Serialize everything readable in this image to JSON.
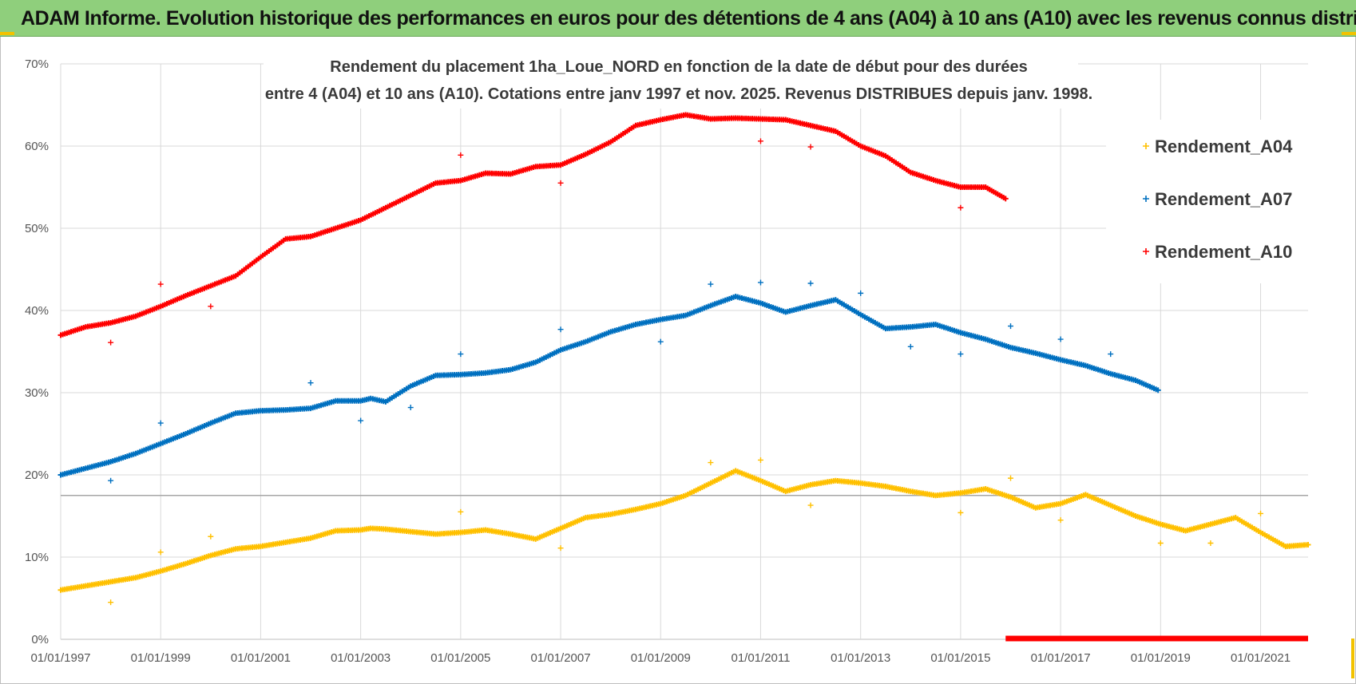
{
  "banner": {
    "title": "ADAM Informe. Evolution historique des performances en euros pour des détentions de 4 ans (A04) à 10 ans (A10) avec les revenus connus distribués"
  },
  "colors": {
    "banner_bg": "#8fcf7c",
    "accent_corner": "#f2c200",
    "A04": "#ffc000",
    "A07": "#0070c0",
    "A10": "#ff0000",
    "grid": "#d9d9d9"
  },
  "chart_data": {
    "type": "scatter",
    "title_lines": [
      "Rendement du placement 1ha_Loue_NORD en fonction de la date de début pour des durées",
      "entre 4 (A04) et 10 ans (A10).  Cotations entre janv 1997 et nov. 2025. Revenus DISTRIBUES depuis janv. 1998."
    ],
    "xlabel": "",
    "ylabel": "",
    "x_range": [
      1997.0,
      2021.95
    ],
    "ylim": [
      0,
      70
    ],
    "y_ticks": [
      0,
      10,
      20,
      30,
      40,
      50,
      60,
      70
    ],
    "y_tick_labels": [
      "0%",
      "10%",
      "20%",
      "30%",
      "40%",
      "50%",
      "60%",
      "70%"
    ],
    "x_ticks": [
      1997,
      1999,
      2001,
      2003,
      2005,
      2007,
      2009,
      2011,
      2013,
      2015,
      2017,
      2019,
      2021
    ],
    "x_tick_labels": [
      "01/01/1997",
      "01/01/1999",
      "01/01/2001",
      "01/01/2003",
      "01/01/2005",
      "01/01/2007",
      "01/01/2009",
      "01/01/2011",
      "01/01/2013",
      "01/01/2015",
      "01/01/2017",
      "01/01/2019",
      "01/01/2021"
    ],
    "reference_line_y": 17.5,
    "grid": true,
    "legend_position": "right",
    "series": [
      {
        "name": "Rendement_A04",
        "points": [
          [
            1997.0,
            6.0
          ],
          [
            1997.5,
            6.5
          ],
          [
            1998.0,
            7.0
          ],
          [
            1998.5,
            7.5
          ],
          [
            1999.0,
            8.3
          ],
          [
            1999.5,
            9.2
          ],
          [
            2000.0,
            10.2
          ],
          [
            2000.5,
            11.0
          ],
          [
            2001.0,
            11.3
          ],
          [
            2001.5,
            11.8
          ],
          [
            2002.0,
            12.3
          ],
          [
            2002.5,
            13.2
          ],
          [
            2003.0,
            13.3
          ],
          [
            2003.2,
            13.5
          ],
          [
            2003.5,
            13.4
          ],
          [
            2004.0,
            13.1
          ],
          [
            2004.5,
            12.8
          ],
          [
            2005.0,
            13.0
          ],
          [
            2005.5,
            13.3
          ],
          [
            2006.0,
            12.8
          ],
          [
            2006.5,
            12.2
          ],
          [
            2007.0,
            13.5
          ],
          [
            2007.5,
            14.8
          ],
          [
            2008.0,
            15.2
          ],
          [
            2008.5,
            15.8
          ],
          [
            2009.0,
            16.5
          ],
          [
            2009.5,
            17.5
          ],
          [
            2010.0,
            19.0
          ],
          [
            2010.5,
            20.5
          ],
          [
            2011.0,
            19.3
          ],
          [
            2011.5,
            18.0
          ],
          [
            2012.0,
            18.8
          ],
          [
            2012.5,
            19.3
          ],
          [
            2013.0,
            19.0
          ],
          [
            2013.5,
            18.6
          ],
          [
            2014.0,
            18.0
          ],
          [
            2014.5,
            17.5
          ],
          [
            2015.0,
            17.8
          ],
          [
            2015.5,
            18.3
          ],
          [
            2016.0,
            17.3
          ],
          [
            2016.5,
            16.0
          ],
          [
            2017.0,
            16.5
          ],
          [
            2017.5,
            17.6
          ],
          [
            2018.0,
            16.3
          ],
          [
            2018.5,
            15.0
          ],
          [
            2019.0,
            14.0
          ],
          [
            2019.5,
            13.2
          ],
          [
            2020.0,
            14.0
          ],
          [
            2020.5,
            14.8
          ],
          [
            2021.0,
            13.0
          ],
          [
            2021.5,
            11.3
          ],
          [
            2021.95,
            11.5
          ]
        ],
        "outliers": [
          [
            1998.0,
            4.5
          ],
          [
            1999.0,
            10.6
          ],
          [
            2000.0,
            12.5
          ],
          [
            2005.0,
            15.5
          ],
          [
            2007.0,
            11.1
          ],
          [
            2010.0,
            21.5
          ],
          [
            2011.0,
            21.8
          ],
          [
            2012.0,
            16.3
          ],
          [
            2015.0,
            15.4
          ],
          [
            2016.0,
            19.6
          ],
          [
            2017.0,
            14.5
          ],
          [
            2019.0,
            11.7
          ],
          [
            2020.0,
            11.7
          ],
          [
            2021.0,
            15.3
          ]
        ]
      },
      {
        "name": "Rendement_A07",
        "points": [
          [
            1997.0,
            20.0
          ],
          [
            1997.5,
            20.8
          ],
          [
            1998.0,
            21.6
          ],
          [
            1998.5,
            22.6
          ],
          [
            1999.0,
            23.8
          ],
          [
            1999.5,
            25.0
          ],
          [
            2000.0,
            26.3
          ],
          [
            2000.5,
            27.5
          ],
          [
            2001.0,
            27.8
          ],
          [
            2001.5,
            27.9
          ],
          [
            2002.0,
            28.1
          ],
          [
            2002.5,
            29.0
          ],
          [
            2003.0,
            29.0
          ],
          [
            2003.2,
            29.3
          ],
          [
            2003.5,
            28.9
          ],
          [
            2004.0,
            30.8
          ],
          [
            2004.5,
            32.1
          ],
          [
            2005.0,
            32.2
          ],
          [
            2005.5,
            32.4
          ],
          [
            2006.0,
            32.8
          ],
          [
            2006.5,
            33.7
          ],
          [
            2007.0,
            35.2
          ],
          [
            2007.5,
            36.2
          ],
          [
            2008.0,
            37.4
          ],
          [
            2008.5,
            38.3
          ],
          [
            2009.0,
            38.9
          ],
          [
            2009.5,
            39.4
          ],
          [
            2010.0,
            40.6
          ],
          [
            2010.5,
            41.7
          ],
          [
            2011.0,
            40.9
          ],
          [
            2011.5,
            39.8
          ],
          [
            2012.0,
            40.6
          ],
          [
            2012.5,
            41.3
          ],
          [
            2013.0,
            39.5
          ],
          [
            2013.5,
            37.8
          ],
          [
            2014.0,
            38.0
          ],
          [
            2014.5,
            38.3
          ],
          [
            2015.0,
            37.3
          ],
          [
            2015.5,
            36.5
          ],
          [
            2016.0,
            35.5
          ],
          [
            2016.5,
            34.8
          ],
          [
            2017.0,
            34.0
          ],
          [
            2017.5,
            33.3
          ],
          [
            2018.0,
            32.3
          ],
          [
            2018.5,
            31.5
          ],
          [
            2018.95,
            30.3
          ]
        ],
        "outliers": [
          [
            1998.0,
            19.3
          ],
          [
            1999.0,
            26.3
          ],
          [
            2002.0,
            31.2
          ],
          [
            2003.0,
            26.6
          ],
          [
            2004.0,
            28.2
          ],
          [
            2005.0,
            34.7
          ],
          [
            2007.0,
            37.7
          ],
          [
            2009.0,
            36.2
          ],
          [
            2010.0,
            43.2
          ],
          [
            2011.0,
            43.4
          ],
          [
            2012.0,
            43.3
          ],
          [
            2013.0,
            42.1
          ],
          [
            2014.0,
            35.6
          ],
          [
            2015.0,
            34.7
          ],
          [
            2016.0,
            38.1
          ],
          [
            2017.0,
            36.5
          ],
          [
            2018.0,
            34.7
          ]
        ]
      },
      {
        "name": "Rendement_A10",
        "points": [
          [
            1997.0,
            37.0
          ],
          [
            1997.5,
            38.0
          ],
          [
            1998.0,
            38.5
          ],
          [
            1998.5,
            39.3
          ],
          [
            1999.0,
            40.5
          ],
          [
            1999.5,
            41.8
          ],
          [
            2000.0,
            43.0
          ],
          [
            2000.5,
            44.2
          ],
          [
            2001.0,
            46.5
          ],
          [
            2001.5,
            48.7
          ],
          [
            2002.0,
            49.0
          ],
          [
            2002.5,
            50.0
          ],
          [
            2003.0,
            51.0
          ],
          [
            2003.5,
            52.5
          ],
          [
            2004.0,
            54.0
          ],
          [
            2004.5,
            55.5
          ],
          [
            2005.0,
            55.8
          ],
          [
            2005.5,
            56.7
          ],
          [
            2006.0,
            56.6
          ],
          [
            2006.5,
            57.5
          ],
          [
            2007.0,
            57.7
          ],
          [
            2007.5,
            59.0
          ],
          [
            2008.0,
            60.5
          ],
          [
            2008.5,
            62.5
          ],
          [
            2009.0,
            63.2
          ],
          [
            2009.5,
            63.8
          ],
          [
            2010.0,
            63.3
          ],
          [
            2010.5,
            63.4
          ],
          [
            2011.0,
            63.3
          ],
          [
            2011.5,
            63.2
          ],
          [
            2012.0,
            62.5
          ],
          [
            2012.5,
            61.8
          ],
          [
            2013.0,
            60.0
          ],
          [
            2013.5,
            58.8
          ],
          [
            2014.0,
            56.8
          ],
          [
            2014.5,
            55.8
          ],
          [
            2015.0,
            55.0
          ],
          [
            2015.5,
            55.0
          ],
          [
            2015.9,
            53.6
          ]
        ],
        "zero_segment": [
          2015.9,
          2021.95
        ],
        "outliers": [
          [
            1998.0,
            36.1
          ],
          [
            1999.0,
            43.2
          ],
          [
            2000.0,
            40.5
          ],
          [
            2005.0,
            58.9
          ],
          [
            2007.0,
            55.5
          ],
          [
            2011.0,
            60.6
          ],
          [
            2012.0,
            59.9
          ],
          [
            2015.0,
            52.5
          ]
        ]
      }
    ]
  }
}
